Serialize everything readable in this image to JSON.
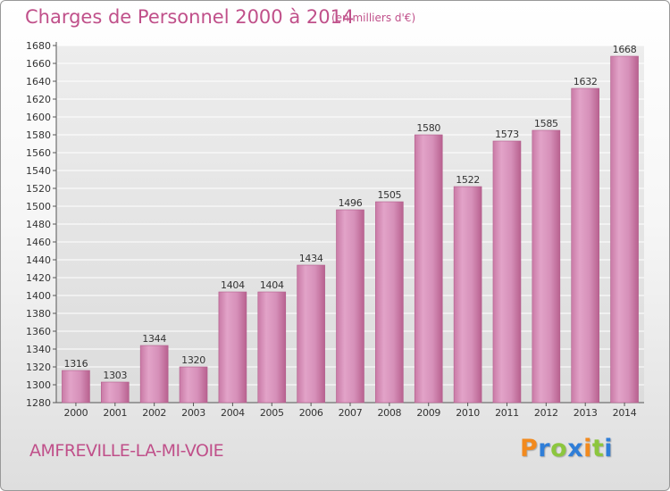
{
  "header": {
    "title": "Charges de Personnel 2000 à 2014",
    "subtitle": "(en milliers d'€)"
  },
  "footer": {
    "city": "AMFREVILLE-LA-MI-VOIE",
    "logo": [
      "P",
      "r",
      "o",
      "x",
      "i",
      "t",
      "i"
    ]
  },
  "logo_colors": [
    "#f28a1e",
    "#2f7ed8",
    "#8cc63e",
    "#2f7ed8",
    "#f28a1e",
    "#8cc63e",
    "#2f7ed8"
  ],
  "chart_data": {
    "type": "bar",
    "categories": [
      "2000",
      "2001",
      "2002",
      "2003",
      "2004",
      "2005",
      "2006",
      "2007",
      "2008",
      "2009",
      "2010",
      "2011",
      "2012",
      "2013",
      "2014"
    ],
    "values": [
      1316,
      1303,
      1344,
      1320,
      1404,
      1404,
      1434,
      1496,
      1505,
      1580,
      1522,
      1573,
      1585,
      1632,
      1668
    ],
    "ylim": [
      1280,
      1680
    ],
    "yticks": [
      1280,
      1300,
      1320,
      1340,
      1360,
      1380,
      1400,
      1420,
      1440,
      1460,
      1480,
      1500,
      1520,
      1540,
      1560,
      1580,
      1600,
      1620,
      1640,
      1660,
      1680
    ],
    "grid": true,
    "bar_color": "#d98ab8"
  }
}
